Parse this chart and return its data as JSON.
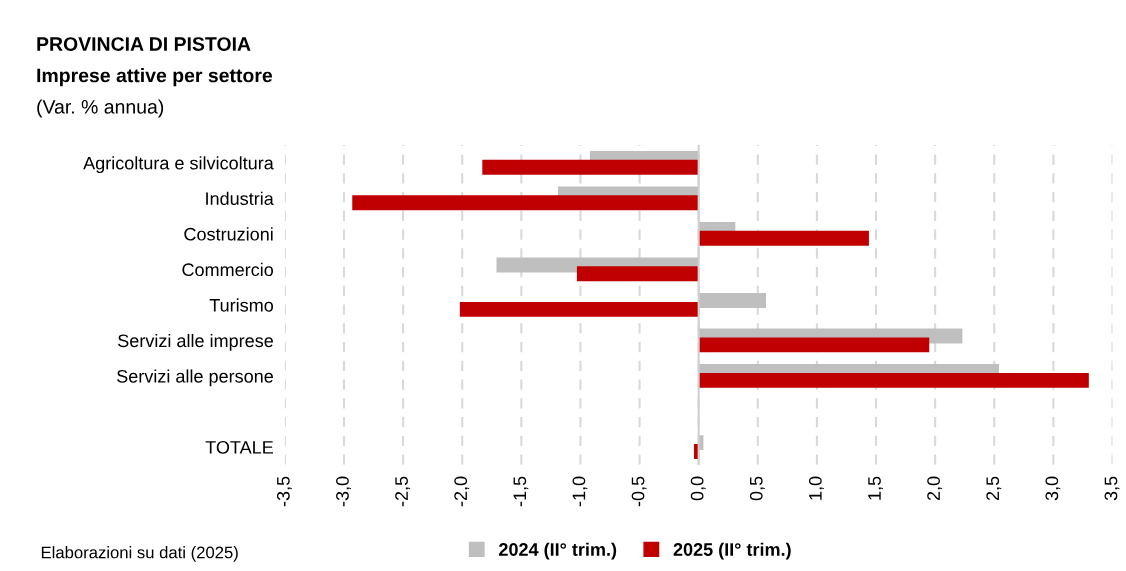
{
  "chart_data": {
    "type": "bar",
    "orientation": "horizontal",
    "title": "PROVINCIA DI PISTOIA",
    "subtitle": "Imprese attive per settore",
    "xlabel": "(Var. % annua)",
    "categories": [
      "Agricoltura e silvicoltura",
      "Industria",
      "Costruzioni",
      "Commercio",
      "Turismo",
      "Servizi alle imprese",
      "Servizi alle persone",
      null,
      "TOTALE"
    ],
    "series": [
      {
        "name": "2024 (II° trim.)",
        "color": "#bfbfbf",
        "values": [
          -0.92,
          -1.19,
          0.31,
          -1.71,
          0.57,
          2.23,
          2.54,
          null,
          0.04
        ]
      },
      {
        "name": "2025 (II° trim.)",
        "color": "#c00000",
        "values": [
          -1.83,
          -2.93,
          1.44,
          -1.03,
          -2.02,
          1.95,
          3.3,
          null,
          -0.04
        ]
      }
    ],
    "xlim": [
      -3.5,
      3.5
    ],
    "xticks": [
      {
        "value": -3.5,
        "label": "-3,5"
      },
      {
        "value": -3.0,
        "label": "-3,0"
      },
      {
        "value": -2.5,
        "label": "-2,5"
      },
      {
        "value": -2.0,
        "label": "-2,0"
      },
      {
        "value": -1.5,
        "label": "-1,5"
      },
      {
        "value": -1.0,
        "label": "-1,0"
      },
      {
        "value": -0.5,
        "label": "-0,5"
      },
      {
        "value": 0.0,
        "label": "0,0"
      },
      {
        "value": 0.5,
        "label": "0,5"
      },
      {
        "value": 1.0,
        "label": "1,0"
      },
      {
        "value": 1.5,
        "label": "1,5"
      },
      {
        "value": 2.0,
        "label": "2,0"
      },
      {
        "value": 2.5,
        "label": "2,5"
      },
      {
        "value": 3.0,
        "label": "3,0"
      },
      {
        "value": 3.5,
        "label": "3,5"
      }
    ],
    "grid": "x",
    "legend": "bottom",
    "annotations": [
      "Elaborazioni su dati (2025)"
    ]
  }
}
